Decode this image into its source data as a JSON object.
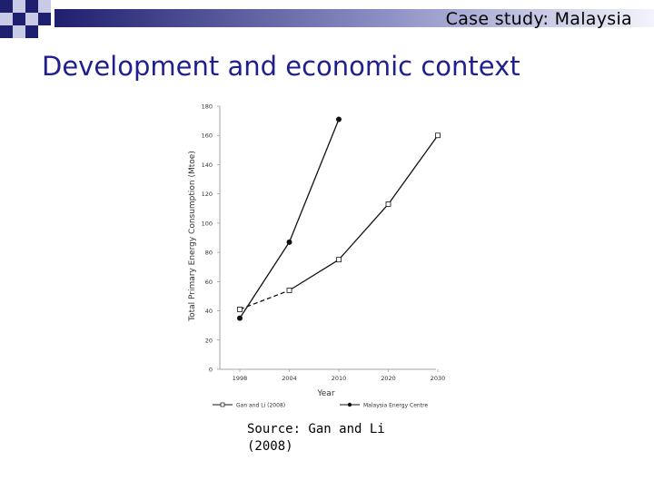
{
  "header": {
    "title": "Case study: Malaysia"
  },
  "slide": {
    "title": "Development and economic context"
  },
  "source": {
    "line1": "Source: Gan and Li",
    "line2": "(2008)"
  },
  "colors": {
    "title": "#1f1f8f",
    "deco_dark": "#1f1f6f",
    "deco_light": "#c9cbe6"
  },
  "chart_data": {
    "type": "line",
    "categories": [
      "1998",
      "2004",
      "2010",
      "2020",
      "2030"
    ],
    "y_ticks": [
      0,
      20,
      40,
      60,
      80,
      100,
      120,
      140,
      160,
      180
    ],
    "ylim": [
      0,
      180
    ],
    "xlabel": "Year",
    "ylabel": "Total Primary Energy Consumption (Mtoe)",
    "legend_position": "bottom",
    "series": [
      {
        "name": "Gan and Li (2008)",
        "marker": "square",
        "values": [
          41,
          54,
          75,
          113,
          160
        ]
      },
      {
        "name": "Malaysia Energy Centre",
        "marker": "circle",
        "values": [
          35,
          87,
          171,
          null,
          null
        ]
      }
    ]
  }
}
